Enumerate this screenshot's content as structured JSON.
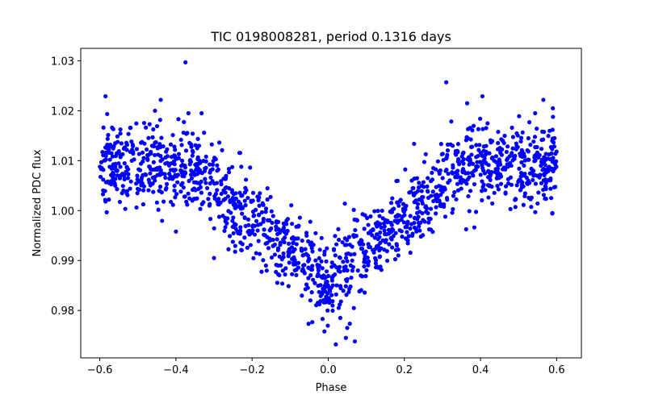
{
  "chart_data": {
    "type": "scatter",
    "title": "TIC 0198008281, period 0.1316 days",
    "xlabel": "Phase",
    "ylabel": "Normalized PDC flux",
    "xlim": [
      -0.65,
      0.665
    ],
    "ylim": [
      0.9705,
      1.0325
    ],
    "x_ticks": [
      -0.6,
      -0.4,
      -0.2,
      0.0,
      0.2,
      0.4,
      0.6
    ],
    "x_tick_labels": [
      "−0.6",
      "−0.4",
      "−0.2",
      "0.0",
      "0.2",
      "0.4",
      "0.6"
    ],
    "y_ticks": [
      0.98,
      0.99,
      1.0,
      1.01,
      1.02,
      1.03
    ],
    "y_tick_labels": [
      "0.98",
      "0.99",
      "1.00",
      "1.01",
      "1.02",
      "1.03"
    ],
    "grid": false,
    "marker_color": "#0000ff",
    "phase_range": [
      -0.6,
      0.6
    ],
    "profile": {
      "baseline": 1.009,
      "minimum": 0.985,
      "eclipse_half_width": 0.35,
      "scatter_sd": 0.004,
      "n_points": 1500
    },
    "highlighted_points": [
      {
        "x": -0.375,
        "y": 1.0297
      },
      {
        "x": 0.31,
        "y": 1.0257
      },
      {
        "x": -0.585,
        "y": 1.0229
      },
      {
        "x": 0.405,
        "y": 1.0229
      },
      {
        "x": 0.565,
        "y": 1.0222
      },
      {
        "x": -0.44,
        "y": 1.0222
      },
      {
        "x": 0.365,
        "y": 1.0215
      },
      {
        "x": -0.455,
        "y": 1.02
      },
      {
        "x": 0.59,
        "y": 1.0205
      },
      {
        "x": 0.02,
        "y": 0.9732
      },
      {
        "x": 0.07,
        "y": 0.9738
      },
      {
        "x": -0.01,
        "y": 0.9758
      },
      {
        "x": 0.05,
        "y": 0.9765
      },
      {
        "x": -0.3,
        "y": 0.9905
      },
      {
        "x": -0.4,
        "y": 0.9958
      }
    ]
  }
}
